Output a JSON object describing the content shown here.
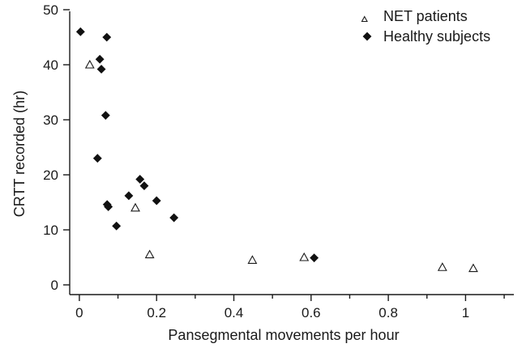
{
  "chart_data": {
    "type": "scatter",
    "xlabel": "Pansegmental movements per hour",
    "ylabel": "CRTT recorded (hr)",
    "xlim": [
      -0.025,
      1.125
    ],
    "ylim": [
      0,
      50
    ],
    "x_ticks": [
      0,
      0.2,
      0.4,
      0.6,
      0.8,
      1
    ],
    "x_tick_labels": [
      "0",
      "0.2",
      "0.4",
      "0.6",
      "0.8",
      "1"
    ],
    "x_minor_ticks": [
      0.1,
      0.3,
      0.5,
      0.7,
      0.9,
      1.1
    ],
    "y_ticks": [
      0,
      10,
      20,
      30,
      40,
      50
    ],
    "y_tick_labels": [
      "0",
      "10",
      "20",
      "30",
      "40",
      "50"
    ],
    "grid": false,
    "legend_position": "top-right",
    "series": [
      {
        "name": "NET patients",
        "marker": "open-triangle",
        "color": "#1a1a1a",
        "points": [
          {
            "x": 0.027,
            "y": 40.0
          },
          {
            "x": 0.145,
            "y": 14.0
          },
          {
            "x": 0.182,
            "y": 5.5
          },
          {
            "x": 0.448,
            "y": 4.5
          },
          {
            "x": 0.582,
            "y": 5.0
          },
          {
            "x": 0.94,
            "y": 3.2
          },
          {
            "x": 1.02,
            "y": 3.0
          }
        ]
      },
      {
        "name": "Healthy subjects",
        "marker": "filled-diamond",
        "color": "#111111",
        "points": [
          {
            "x": 0.003,
            "y": 46.0
          },
          {
            "x": 0.071,
            "y": 45.0
          },
          {
            "x": 0.053,
            "y": 41.0
          },
          {
            "x": 0.057,
            "y": 39.2
          },
          {
            "x": 0.068,
            "y": 30.8
          },
          {
            "x": 0.047,
            "y": 23.0
          },
          {
            "x": 0.157,
            "y": 19.2
          },
          {
            "x": 0.168,
            "y": 18.0
          },
          {
            "x": 0.128,
            "y": 16.2
          },
          {
            "x": 0.2,
            "y": 15.3
          },
          {
            "x": 0.072,
            "y": 14.6
          },
          {
            "x": 0.075,
            "y": 14.2
          },
          {
            "x": 0.245,
            "y": 12.2
          },
          {
            "x": 0.096,
            "y": 10.7
          },
          {
            "x": 0.608,
            "y": 4.9
          }
        ]
      }
    ]
  }
}
